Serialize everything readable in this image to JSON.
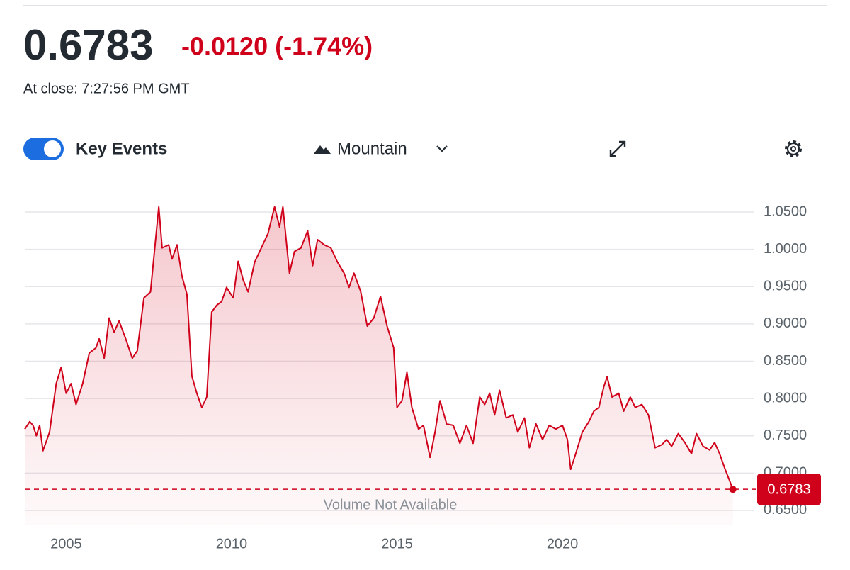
{
  "header": {
    "price": "0.6783",
    "change": "-0.0120 (-1.74%)",
    "close_time": "At close: 7:27:56 PM GMT"
  },
  "controls": {
    "key_events": "Key Events",
    "chart_type": "Mountain"
  },
  "chart_data": {
    "type": "area",
    "color": "#d0021b",
    "annotation": "Volume Not Available",
    "last_value": 0.6783,
    "xlim": [
      2003.75,
      2025.8
    ],
    "xticks": [
      2005,
      2010,
      2015,
      2020
    ],
    "ylim": [
      0.63,
      1.07
    ],
    "yticks": [
      {
        "value": 0.65,
        "label": "0.6500"
      },
      {
        "value": 0.7,
        "label": "0.7000"
      },
      {
        "value": 0.75,
        "label": "0.7500"
      },
      {
        "value": 0.8,
        "label": "0.8000"
      },
      {
        "value": 0.85,
        "label": "0.8500"
      },
      {
        "value": 0.9,
        "label": "0.9000"
      },
      {
        "value": 0.95,
        "label": "0.9500"
      },
      {
        "value": 1.0,
        "label": "1.0000"
      },
      {
        "value": 1.05,
        "label": "1.0500"
      }
    ],
    "grid": true,
    "x": [
      2003.75,
      2003.9,
      2004.0,
      2004.1,
      2004.2,
      2004.3,
      2004.5,
      2004.7,
      2004.85,
      2005.0,
      2005.15,
      2005.3,
      2005.5,
      2005.7,
      2005.9,
      2006.0,
      2006.15,
      2006.3,
      2006.45,
      2006.6,
      2006.8,
      2007.0,
      2007.15,
      2007.35,
      2007.55,
      2007.8,
      2007.9,
      2008.1,
      2008.2,
      2008.35,
      2008.5,
      2008.65,
      2008.8,
      2008.95,
      2009.1,
      2009.25,
      2009.4,
      2009.55,
      2009.7,
      2009.85,
      2010.05,
      2010.2,
      2010.35,
      2010.5,
      2010.7,
      2010.9,
      2011.1,
      2011.3,
      2011.45,
      2011.55,
      2011.75,
      2011.9,
      2012.1,
      2012.3,
      2012.45,
      2012.6,
      2012.8,
      2013.0,
      2013.2,
      2013.4,
      2013.55,
      2013.7,
      2013.9,
      2014.1,
      2014.3,
      2014.5,
      2014.7,
      2014.9,
      2015.0,
      2015.15,
      2015.3,
      2015.45,
      2015.65,
      2015.8,
      2016.0,
      2016.15,
      2016.3,
      2016.5,
      2016.7,
      2016.9,
      2017.1,
      2017.3,
      2017.5,
      2017.65,
      2017.8,
      2017.95,
      2018.1,
      2018.3,
      2018.5,
      2018.65,
      2018.85,
      2019.0,
      2019.2,
      2019.4,
      2019.6,
      2019.8,
      2020.0,
      2020.15,
      2020.25,
      2020.4,
      2020.6,
      2020.8,
      2020.95,
      2021.1,
      2021.25,
      2021.35,
      2021.5,
      2021.7,
      2021.85,
      2022.05,
      2022.2,
      2022.4,
      2022.6,
      2022.8,
      2023.0,
      2023.15,
      2023.3,
      2023.5,
      2023.7,
      2023.9,
      2024.05,
      2024.25,
      2024.45,
      2024.6,
      2024.75,
      2024.9,
      2025.05,
      2025.15
    ],
    "values": [
      0.759,
      0.769,
      0.764,
      0.75,
      0.764,
      0.73,
      0.755,
      0.82,
      0.842,
      0.807,
      0.82,
      0.792,
      0.82,
      0.861,
      0.868,
      0.88,
      0.854,
      0.908,
      0.889,
      0.904,
      0.88,
      0.854,
      0.864,
      0.935,
      0.943,
      1.057,
      1.002,
      1.006,
      0.987,
      1.006,
      0.964,
      0.94,
      0.83,
      0.807,
      0.788,
      0.802,
      0.916,
      0.925,
      0.93,
      0.949,
      0.935,
      0.984,
      0.959,
      0.943,
      0.983,
      1.002,
      1.021,
      1.057,
      1.03,
      1.057,
      0.968,
      0.997,
      1.002,
      1.025,
      0.978,
      1.013,
      1.006,
      1.002,
      0.983,
      0.968,
      0.949,
      0.968,
      0.944,
      0.897,
      0.908,
      0.937,
      0.897,
      0.868,
      0.788,
      0.797,
      0.835,
      0.788,
      0.759,
      0.764,
      0.721,
      0.755,
      0.797,
      0.766,
      0.764,
      0.74,
      0.764,
      0.74,
      0.802,
      0.792,
      0.807,
      0.778,
      0.811,
      0.774,
      0.778,
      0.755,
      0.774,
      0.734,
      0.766,
      0.745,
      0.764,
      0.759,
      0.764,
      0.745,
      0.705,
      0.726,
      0.755,
      0.769,
      0.783,
      0.788,
      0.816,
      0.829,
      0.802,
      0.807,
      0.783,
      0.802,
      0.788,
      0.792,
      0.778,
      0.734,
      0.738,
      0.745,
      0.736,
      0.753,
      0.741,
      0.726,
      0.753,
      0.736,
      0.731,
      0.741,
      0.726,
      0.707,
      0.69,
      0.6783
    ]
  }
}
